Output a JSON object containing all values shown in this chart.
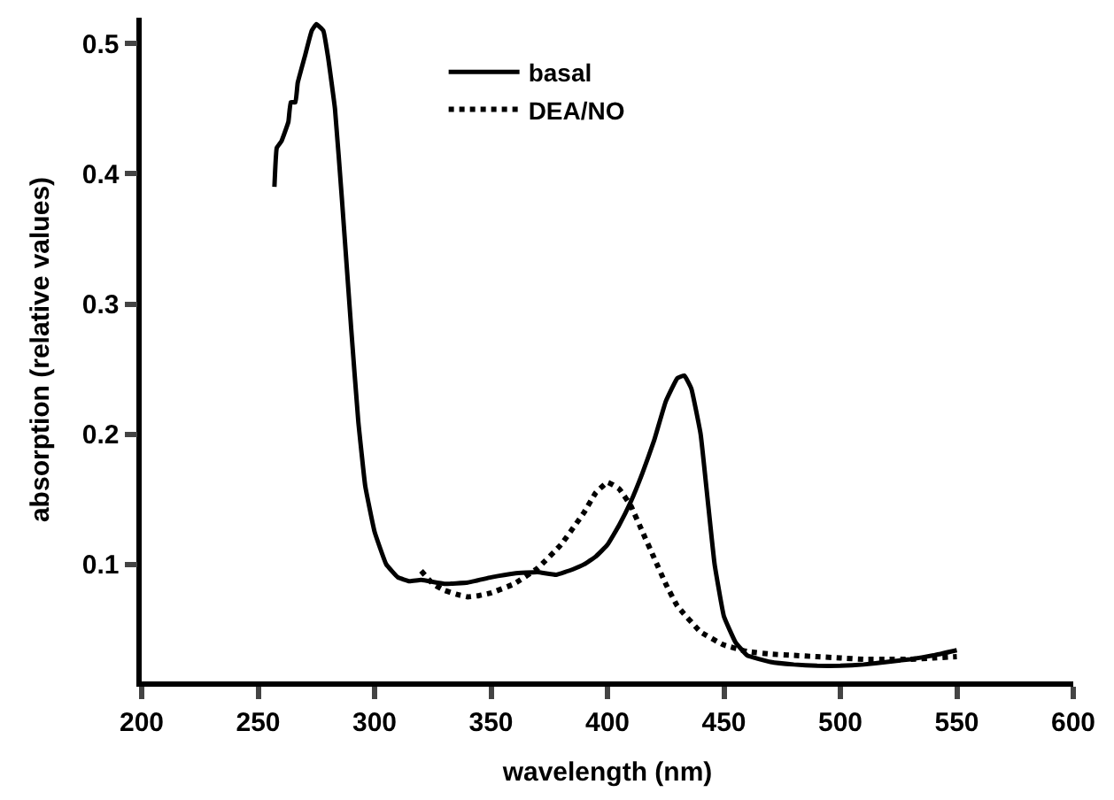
{
  "chart_data": {
    "type": "line",
    "xlabel": "wavelength (nm)",
    "ylabel": "absorption (relative values)",
    "xlim": [
      200,
      600
    ],
    "xticks": [
      200,
      250,
      300,
      350,
      400,
      450,
      500,
      550,
      600
    ],
    "ylim": [
      0.01,
      0.52
    ],
    "yticks": [
      0.1,
      0.2,
      0.3,
      0.4,
      0.5
    ],
    "legend": "top",
    "marker": "none",
    "series": [
      {
        "name": "basal",
        "color": "#000000",
        "line_style": "solid",
        "x": [
          257,
          258,
          260,
          263,
          264,
          266,
          267,
          270,
          273,
          275,
          278,
          280,
          283,
          286,
          290,
          293,
          296,
          300,
          305,
          310,
          315,
          320,
          330,
          340,
          350,
          360,
          370,
          378,
          385,
          390,
          395,
          400,
          405,
          410,
          415,
          420,
          425,
          430,
          433,
          436,
          440,
          443,
          446,
          450,
          455,
          460,
          470,
          480,
          490,
          500,
          510,
          520,
          530,
          540,
          550
        ],
        "values": [
          0.39,
          0.42,
          0.425,
          0.44,
          0.455,
          0.455,
          0.47,
          0.49,
          0.51,
          0.515,
          0.51,
          0.49,
          0.45,
          0.38,
          0.28,
          0.21,
          0.16,
          0.125,
          0.1,
          0.09,
          0.087,
          0.088,
          0.085,
          0.086,
          0.09,
          0.093,
          0.094,
          0.092,
          0.096,
          0.1,
          0.106,
          0.115,
          0.13,
          0.148,
          0.17,
          0.195,
          0.225,
          0.243,
          0.245,
          0.235,
          0.2,
          0.15,
          0.1,
          0.06,
          0.04,
          0.03,
          0.025,
          0.023,
          0.022,
          0.022,
          0.023,
          0.025,
          0.027,
          0.03,
          0.034
        ]
      },
      {
        "name": "DEA/NO",
        "color": "#000000",
        "line_style": "dotted",
        "x": [
          320,
          325,
          330,
          335,
          340,
          345,
          350,
          360,
          370,
          380,
          390,
          395,
          400,
          405,
          410,
          415,
          420,
          425,
          430,
          440,
          450,
          460,
          470,
          480,
          490,
          500,
          510,
          520,
          530,
          540,
          550
        ],
        "values": [
          0.095,
          0.085,
          0.08,
          0.077,
          0.075,
          0.076,
          0.078,
          0.085,
          0.097,
          0.115,
          0.14,
          0.155,
          0.163,
          0.158,
          0.145,
          0.125,
          0.105,
          0.085,
          0.068,
          0.048,
          0.038,
          0.033,
          0.031,
          0.03,
          0.029,
          0.028,
          0.027,
          0.027,
          0.027,
          0.028,
          0.029
        ]
      }
    ]
  }
}
